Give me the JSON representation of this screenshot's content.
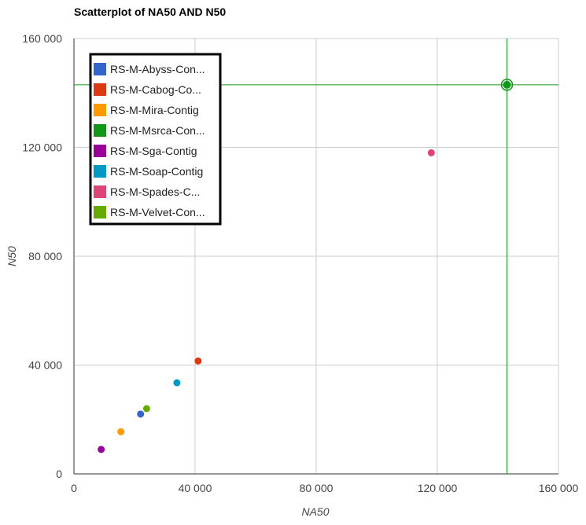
{
  "chart_data": {
    "type": "scatter",
    "title": "Scatterplot of NA50 AND N50",
    "xlabel": "NA50",
    "ylabel": "N50",
    "xlim": [
      0,
      160000
    ],
    "ylim": [
      0,
      160000
    ],
    "x_ticks": [
      0,
      40000,
      80000,
      120000,
      160000
    ],
    "y_ticks": [
      0,
      40000,
      80000,
      120000,
      160000
    ],
    "x_tick_labels": [
      "0",
      "40 000",
      "80 000",
      "120 000",
      "160 000"
    ],
    "y_tick_labels": [
      "0",
      "40 000",
      "80 000",
      "120 000",
      "160 000"
    ],
    "grid": true,
    "legend_position": "top-left",
    "series": [
      {
        "name": "RS-M-Abyss-Con...",
        "color": "#3366cc",
        "x": [
          22000
        ],
        "y": [
          22000
        ]
      },
      {
        "name": "RS-M-Cabog-Co...",
        "color": "#dc3912",
        "x": [
          41000
        ],
        "y": [
          41500
        ]
      },
      {
        "name": "RS-M-Mira-Contig",
        "color": "#ff9900",
        "x": [
          15500
        ],
        "y": [
          15500
        ]
      },
      {
        "name": "RS-M-Msrca-Con...",
        "color": "#109618",
        "x": [
          143000
        ],
        "y": [
          143000
        ],
        "highlighted": true
      },
      {
        "name": "RS-M-Sga-Contig",
        "color": "#990099",
        "x": [
          9000
        ],
        "y": [
          9000
        ]
      },
      {
        "name": "RS-M-Soap-Contig",
        "color": "#0099c6",
        "x": [
          34000
        ],
        "y": [
          33500
        ]
      },
      {
        "name": "RS-M-Spades-C...",
        "color": "#dd4477",
        "x": [
          118000
        ],
        "y": [
          118000
        ]
      },
      {
        "name": "RS-M-Velvet-Con...",
        "color": "#66aa00",
        "x": [
          24000
        ],
        "y": [
          24000
        ]
      }
    ]
  }
}
